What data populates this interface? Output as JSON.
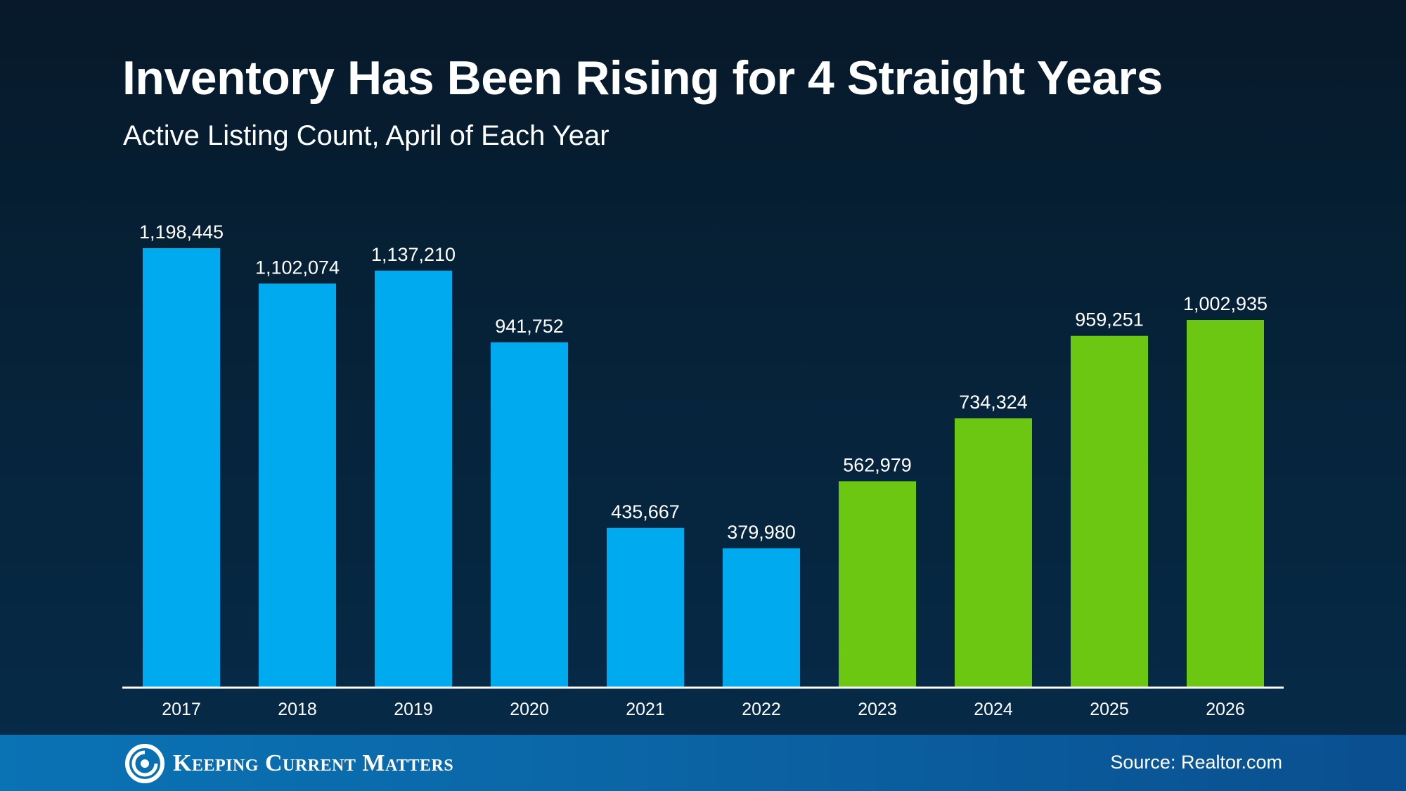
{
  "title": "Inventory Has Been Rising for 4 Straight Years",
  "subtitle": "Active Listing Count, April of Each Year",
  "footer": {
    "brand": "Keeping Current Matters",
    "logo_icon": "kcm-swirl-logo",
    "source": "Source: Realtor.com"
  },
  "colors": {
    "background": "#06182a",
    "footer": "#0b67a8",
    "falling_bar": "#00aaee",
    "rising_bar": "#6cc712",
    "axis": "#ffffff",
    "text": "#ffffff"
  },
  "chart_data": {
    "type": "bar",
    "title": "Inventory Has Been Rising for 4 Straight Years",
    "subtitle": "Active Listing Count, April of Each Year",
    "xlabel": "",
    "ylabel": "",
    "ylim": [
      0,
      1198445
    ],
    "grid": false,
    "categories": [
      "2017",
      "2018",
      "2019",
      "2020",
      "2021",
      "2022",
      "2023",
      "2024",
      "2025",
      "2026"
    ],
    "values": [
      1198445,
      1102074,
      1137210,
      941752,
      435667,
      379980,
      562979,
      734324,
      959251,
      1002935
    ],
    "value_labels": [
      "1,198,445",
      "1,102,074",
      "1,137,210",
      "941,752",
      "435,667",
      "379,980",
      "562,979",
      "734,324",
      "959,251",
      "1,002,935"
    ],
    "bar_colors": [
      "#00aaee",
      "#00aaee",
      "#00aaee",
      "#00aaee",
      "#00aaee",
      "#00aaee",
      "#6cc712",
      "#6cc712",
      "#6cc712",
      "#6cc712"
    ]
  }
}
